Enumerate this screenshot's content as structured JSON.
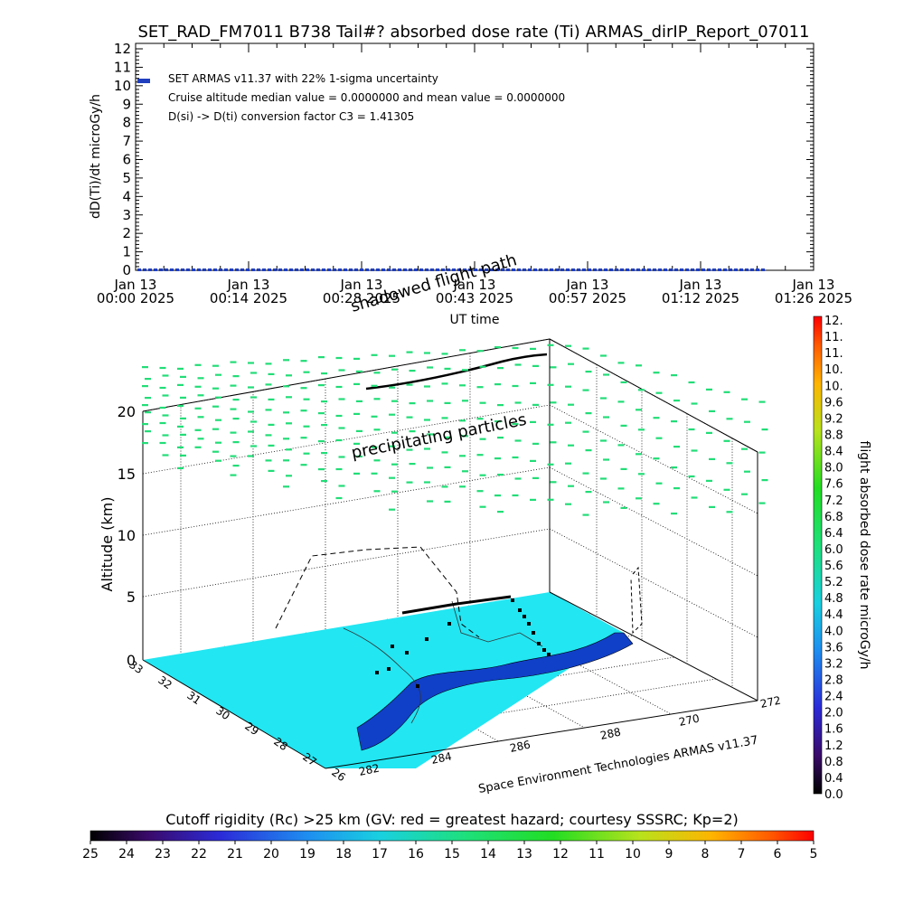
{
  "chart_data": [
    {
      "type": "line",
      "title": "SET_RAD_FM7011  B738 Tail#? absorbed dose rate (Ti) ARMAS_dirIP_Report_07011",
      "xlabel": "UT time",
      "ylabel": "dD(Ti)/dt microGy/h",
      "ylim": [
        0,
        12
      ],
      "yticks": [
        "0",
        "1",
        "2",
        "3",
        "4",
        "5",
        "6",
        "7",
        "8",
        "9",
        "10",
        "11",
        "12"
      ],
      "xticks": [
        {
          "line1": "Jan 13",
          "line2": "00:00 2025"
        },
        {
          "line1": "Jan 13",
          "line2": "00:14 2025"
        },
        {
          "line1": "Jan 13",
          "line2": "00:28 2025"
        },
        {
          "line1": "Jan 13",
          "line2": "00:43 2025"
        },
        {
          "line1": "Jan 13",
          "line2": "00:57 2025"
        },
        {
          "line1": "Jan 13",
          "line2": "01:12 2025"
        },
        {
          "line1": "Jan 13",
          "line2": "01:26 2025"
        }
      ],
      "annotations": [
        "SET ARMAS v11.37 with 22% 1-sigma uncertainty",
        "Cruise altitude median value = 0.0000000 and mean value = 0.0000000",
        "D(si) -> D(ti) conversion factor C3 = 1.41305"
      ],
      "series": [
        {
          "name": "",
          "color": "#1f3fbf",
          "x_minutes": [
            0,
            85
          ],
          "values": [
            0,
            0
          ]
        }
      ],
      "grid": false
    },
    {
      "type": "scatter",
      "title": "",
      "zlabel": "Altitude (km)",
      "zticks": [
        "0",
        "5",
        "10",
        "15",
        "20"
      ],
      "lat_ticks": [
        "33",
        "32",
        "31",
        "30",
        "29",
        "28",
        "27",
        "26"
      ],
      "lon_ticks": [
        "282",
        "284",
        "286",
        "288",
        "270",
        "272"
      ],
      "labels": {
        "top_track": "shadowed flight path",
        "cloud": "precipitating particles",
        "credit": "Space Environment Technologies ARMAS v11.37"
      },
      "particle_color": "#22dd77",
      "ground_color": "#22e6f2",
      "grid": true
    }
  ],
  "right_colorbar": {
    "title": "flight absorbed dose rate microGy/h",
    "ticks": [
      "12.",
      "11.",
      "11.",
      "10.",
      "10.",
      "9.6",
      "9.2",
      "8.8",
      "8.4",
      "8.0",
      "7.6",
      "7.2",
      "6.8",
      "6.4",
      "6.0",
      "5.6",
      "5.2",
      "4.8",
      "4.4",
      "4.0",
      "3.6",
      "3.2",
      "2.8",
      "2.4",
      "2.0",
      "1.6",
      "1.2",
      "0.8",
      "0.4",
      "0.0"
    ]
  },
  "bottom_colorbar": {
    "title": "Cutoff rigidity (Rc) >25 km (GV: red = greatest hazard; courtesy SSSRC; Kp=2)",
    "ticks": [
      "25",
      "24",
      "23",
      "22",
      "21",
      "20",
      "19",
      "18",
      "17",
      "16",
      "15",
      "14",
      "13",
      "12",
      "11",
      "10",
      "9",
      "8",
      "7",
      "6",
      "5"
    ]
  }
}
